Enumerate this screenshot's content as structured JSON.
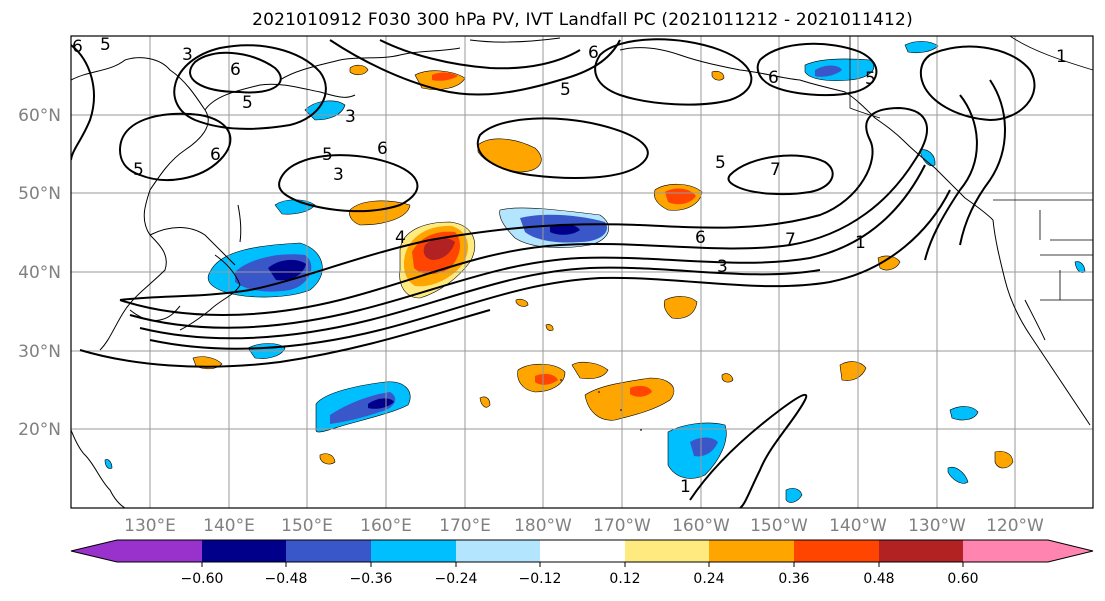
{
  "title": "2021010912 F030 300 hPa PV, IVT Landfall PC (2021011212 - 2021011412)",
  "map": {
    "lat_labels": [
      "60°N",
      "50°N",
      "40°N",
      "30°N",
      "20°N"
    ],
    "lon_labels": [
      "130°E",
      "140°E",
      "150°E",
      "160°E",
      "170°E",
      "180°W",
      "170°W",
      "160°W",
      "150°W",
      "140°W",
      "130°W",
      "120°W"
    ],
    "contour_labels": [
      "5",
      "3",
      "6",
      "5",
      "6",
      "5",
      "6",
      "6",
      "5",
      "3",
      "7",
      "5",
      "6",
      "5",
      "3",
      "4",
      "6",
      "3",
      "1",
      "1",
      "6",
      "5",
      "7",
      "1"
    ]
  },
  "colorbar": {
    "tick_labels": [
      "−0.60",
      "−0.48",
      "−0.36",
      "−0.24",
      "−0.12",
      "0.12",
      "0.24",
      "0.36",
      "0.48",
      "0.60"
    ],
    "colors": [
      "#9932cc",
      "#00008b",
      "#3a57c9",
      "#00bfff",
      "#b3e5ff",
      "#ffffff",
      "#ffea80",
      "#ffa500",
      "#ff4500",
      "#b22222",
      "#ff85b0"
    ]
  }
}
